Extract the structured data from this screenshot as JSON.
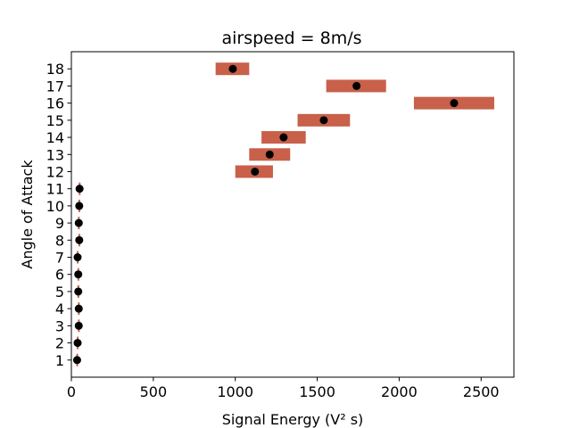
{
  "chart_data": {
    "type": "scatter",
    "title": "airspeed = 8m/s",
    "xlabel": "Signal Energy (V² s)",
    "ylabel": "Angle of Attack",
    "xlim": [
      0,
      2700
    ],
    "ylim": [
      0,
      19
    ],
    "xticks": [
      0,
      500,
      1000,
      1500,
      2000,
      2500
    ],
    "yticks": [
      1,
      2,
      3,
      4,
      5,
      6,
      7,
      8,
      9,
      10,
      11,
      12,
      13,
      14,
      15,
      16,
      17,
      18
    ],
    "grid": false,
    "point_color": "#000000",
    "errorbar_color": "#c8604a",
    "points": [
      {
        "y": 1,
        "x": 35,
        "xerr_low": 30,
        "xerr_high": 40
      },
      {
        "y": 2,
        "x": 38,
        "xerr_low": 33,
        "xerr_high": 43
      },
      {
        "y": 3,
        "x": 45,
        "xerr_low": 40,
        "xerr_high": 50
      },
      {
        "y": 4,
        "x": 45,
        "xerr_low": 40,
        "xerr_high": 50
      },
      {
        "y": 5,
        "x": 42,
        "xerr_low": 37,
        "xerr_high": 47
      },
      {
        "y": 6,
        "x": 42,
        "xerr_low": 37,
        "xerr_high": 47
      },
      {
        "y": 7,
        "x": 38,
        "xerr_low": 33,
        "xerr_high": 43
      },
      {
        "y": 8,
        "x": 48,
        "xerr_low": 43,
        "xerr_high": 53
      },
      {
        "y": 9,
        "x": 45,
        "xerr_low": 40,
        "xerr_high": 50
      },
      {
        "y": 10,
        "x": 48,
        "xerr_low": 43,
        "xerr_high": 53
      },
      {
        "y": 11,
        "x": 50,
        "xerr_low": 45,
        "xerr_high": 55
      },
      {
        "y": 12,
        "x": 1120,
        "xerr_low": 1000,
        "xerr_high": 1230
      },
      {
        "y": 13,
        "x": 1210,
        "xerr_low": 1085,
        "xerr_high": 1335
      },
      {
        "y": 14,
        "x": 1295,
        "xerr_low": 1160,
        "xerr_high": 1430
      },
      {
        "y": 15,
        "x": 1540,
        "xerr_low": 1380,
        "xerr_high": 1700
      },
      {
        "y": 16,
        "x": 2335,
        "xerr_low": 2090,
        "xerr_high": 2580
      },
      {
        "y": 17,
        "x": 1740,
        "xerr_low": 1555,
        "xerr_high": 1920
      },
      {
        "y": 18,
        "x": 985,
        "xerr_low": 880,
        "xerr_high": 1085
      }
    ]
  }
}
